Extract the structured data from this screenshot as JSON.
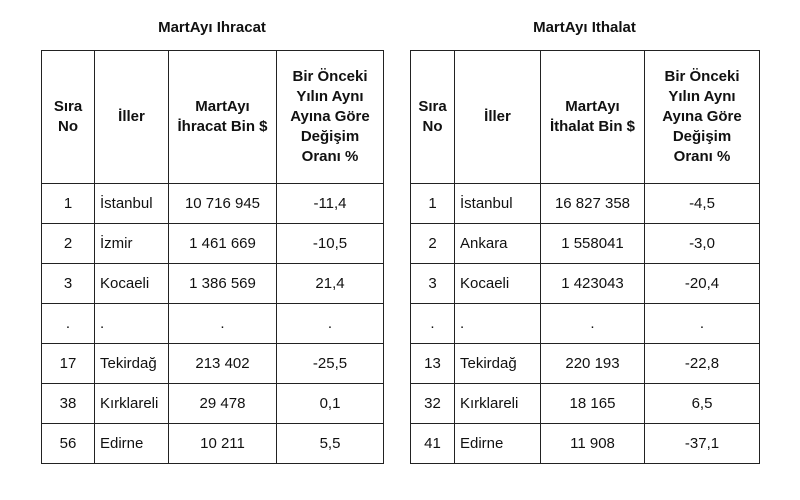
{
  "ihracat": {
    "title": "MartAyı Ihracat",
    "headers": {
      "sira": [
        "Sıra",
        "No"
      ],
      "iller": "İller",
      "value": [
        "MartAyı",
        "İhracat Bin $"
      ],
      "change": [
        "Bir Önceki",
        "Yılın Aynı",
        "Ayına Göre",
        "Değişim",
        "Oranı %"
      ]
    },
    "rows": [
      {
        "no": "1",
        "il": "İstanbul",
        "value": "10 716 945",
        "change": "-11,4"
      },
      {
        "no": "2",
        "il": "İzmir",
        "value": "1 461 669",
        "change": "-10,5"
      },
      {
        "no": "3",
        "il": "Kocaeli",
        "value": "1 386 569",
        "change": "21,4"
      },
      {
        "no": ".",
        "il": ".",
        "value": ".",
        "change": "."
      },
      {
        "no": "17",
        "il": "Tekirdağ",
        "value": "213 402",
        "change": "-25,5"
      },
      {
        "no": "38",
        "il": "Kırklareli",
        "value": "29 478",
        "change": "0,1"
      },
      {
        "no": "56",
        "il": "Edirne",
        "value": "10 211",
        "change": "5,5"
      }
    ]
  },
  "ithalat": {
    "title": "MartAyı Ithalat",
    "headers": {
      "sira": [
        "Sıra",
        "No"
      ],
      "iller": "İller",
      "value": [
        "MartAyı",
        "İthalat Bin $"
      ],
      "change": [
        "Bir Önceki",
        "Yılın Aynı",
        "Ayına Göre",
        "Değişim",
        "Oranı %"
      ]
    },
    "rows": [
      {
        "no": "1",
        "il": "İstanbul",
        "value": "16 827 358",
        "change": "-4,5"
      },
      {
        "no": "2",
        "il": "Ankara",
        "value": "1 558041",
        "change": "-3,0"
      },
      {
        "no": "3",
        "il": "Kocaeli",
        "value": "1 423043",
        "change": "-20,4"
      },
      {
        "no": ".",
        "il": ".",
        "value": ".",
        "change": "."
      },
      {
        "no": "13",
        "il": "Tekirdağ",
        "value": "220 193",
        "change": "-22,8"
      },
      {
        "no": "32",
        "il": "Kırklareli",
        "value": "18 165",
        "change": "6,5"
      },
      {
        "no": "41",
        "il": "Edirne",
        "value": "11 908",
        "change": "-37,1"
      }
    ]
  }
}
